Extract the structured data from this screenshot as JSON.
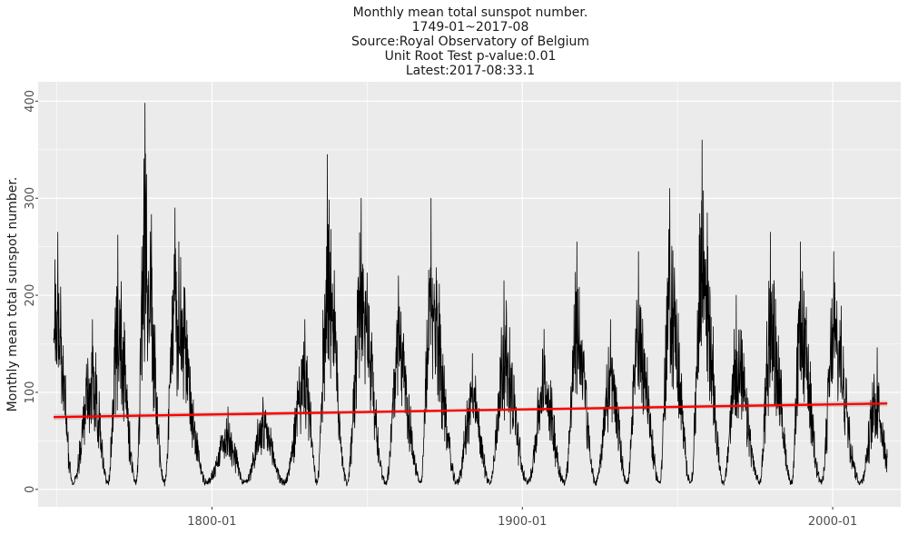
{
  "chart_data": {
    "type": "line",
    "title_lines": [
      "Monthly mean total sunspot number.",
      "1749-01~2017-08",
      "Source:Royal Observatory of Belgium",
      "Unit Root Test p-value:0.01",
      "Latest:2017-08:33.1"
    ],
    "xlabel": "",
    "ylabel": "Monthly mean total sunspot number.",
    "x_domain": [
      "1744-01",
      "2021-12"
    ],
    "ylim": [
      -18,
      420
    ],
    "x_ticks": [
      {
        "label": "1800-01",
        "year": 1800.0
      },
      {
        "label": "1900-01",
        "year": 1900.0
      },
      {
        "label": "2000-01",
        "year": 2000.0
      }
    ],
    "y_ticks": [
      0,
      100,
      200,
      300,
      400
    ],
    "background": "#ebebeb",
    "grid_major": "#ffffff",
    "series": [
      {
        "kind": "monthly",
        "color": "#000000",
        "x_start": "1749-01",
        "x_end": "2017-08",
        "cycle_peaks": [
          {
            "year": 1750.3,
            "value": 265
          },
          {
            "year": 1761.5,
            "value": 175
          },
          {
            "year": 1769.7,
            "value": 262
          },
          {
            "year": 1778.4,
            "value": 398
          },
          {
            "year": 1788.1,
            "value": 290
          },
          {
            "year": 1805.2,
            "value": 85
          },
          {
            "year": 1816.4,
            "value": 95
          },
          {
            "year": 1829.9,
            "value": 175
          },
          {
            "year": 1837.2,
            "value": 345
          },
          {
            "year": 1848.1,
            "value": 300
          },
          {
            "year": 1860.1,
            "value": 220
          },
          {
            "year": 1870.6,
            "value": 300
          },
          {
            "year": 1883.9,
            "value": 140
          },
          {
            "year": 1894.1,
            "value": 215
          },
          {
            "year": 1907.0,
            "value": 165
          },
          {
            "year": 1917.6,
            "value": 255
          },
          {
            "year": 1928.4,
            "value": 175
          },
          {
            "year": 1937.4,
            "value": 245
          },
          {
            "year": 1947.5,
            "value": 310
          },
          {
            "year": 1957.9,
            "value": 360
          },
          {
            "year": 1968.9,
            "value": 200
          },
          {
            "year": 1979.9,
            "value": 265
          },
          {
            "year": 1989.6,
            "value": 255
          },
          {
            "year": 2000.3,
            "value": 245
          },
          {
            "year": 2014.3,
            "value": 146
          }
        ],
        "cycle_minima": [
          1755.2,
          1766.5,
          1775.5,
          1784.7,
          1798.3,
          1810.6,
          1823.3,
          1833.9,
          1843.5,
          1856.0,
          1867.2,
          1878.9,
          1889.6,
          1901.7,
          1913.6,
          1923.6,
          1933.8,
          1944.2,
          1954.3,
          1964.9,
          1976.5,
          1986.8,
          1996.4,
          2008.9
        ],
        "minimum_value": 3,
        "latest": {
          "date": "2017-08",
          "value": 33.1
        }
      },
      {
        "kind": "trend",
        "color": "#ff0000",
        "band_color": "#bdbdbd",
        "x": [
          "1749-01",
          "2017-08"
        ],
        "values": [
          74.5,
          88.5
        ]
      }
    ]
  }
}
